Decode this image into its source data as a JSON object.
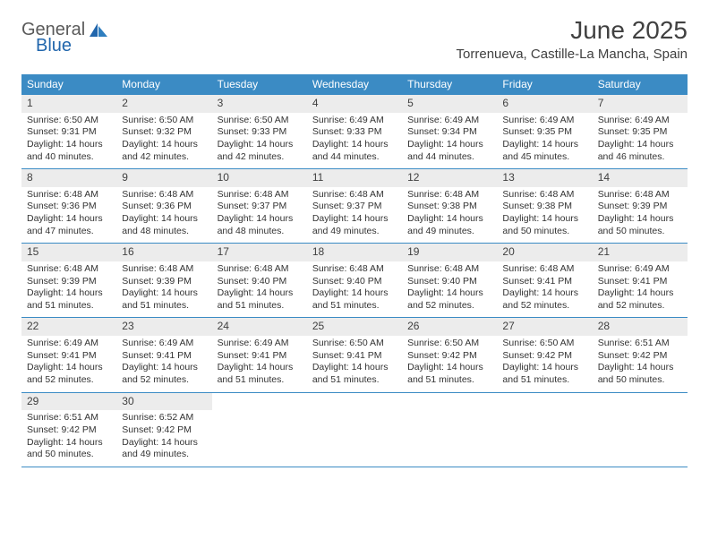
{
  "logo": {
    "text1": "General",
    "text2": "Blue"
  },
  "title": "June 2025",
  "location": "Torrenueva, Castille-La Mancha, Spain",
  "colors": {
    "header_bar": "#3b8bc4",
    "daynum_bg": "#ececec",
    "text": "#333333",
    "rule": "#3b8bc4",
    "logo_gray": "#5a5a5a",
    "logo_blue": "#2166ac"
  },
  "dow": [
    "Sunday",
    "Monday",
    "Tuesday",
    "Wednesday",
    "Thursday",
    "Friday",
    "Saturday"
  ],
  "weeks": [
    [
      {
        "n": "1",
        "sr": "Sunrise: 6:50 AM",
        "ss": "Sunset: 9:31 PM",
        "d1": "Daylight: 14 hours",
        "d2": "and 40 minutes."
      },
      {
        "n": "2",
        "sr": "Sunrise: 6:50 AM",
        "ss": "Sunset: 9:32 PM",
        "d1": "Daylight: 14 hours",
        "d2": "and 42 minutes."
      },
      {
        "n": "3",
        "sr": "Sunrise: 6:50 AM",
        "ss": "Sunset: 9:33 PM",
        "d1": "Daylight: 14 hours",
        "d2": "and 42 minutes."
      },
      {
        "n": "4",
        "sr": "Sunrise: 6:49 AM",
        "ss": "Sunset: 9:33 PM",
        "d1": "Daylight: 14 hours",
        "d2": "and 44 minutes."
      },
      {
        "n": "5",
        "sr": "Sunrise: 6:49 AM",
        "ss": "Sunset: 9:34 PM",
        "d1": "Daylight: 14 hours",
        "d2": "and 44 minutes."
      },
      {
        "n": "6",
        "sr": "Sunrise: 6:49 AM",
        "ss": "Sunset: 9:35 PM",
        "d1": "Daylight: 14 hours",
        "d2": "and 45 minutes."
      },
      {
        "n": "7",
        "sr": "Sunrise: 6:49 AM",
        "ss": "Sunset: 9:35 PM",
        "d1": "Daylight: 14 hours",
        "d2": "and 46 minutes."
      }
    ],
    [
      {
        "n": "8",
        "sr": "Sunrise: 6:48 AM",
        "ss": "Sunset: 9:36 PM",
        "d1": "Daylight: 14 hours",
        "d2": "and 47 minutes."
      },
      {
        "n": "9",
        "sr": "Sunrise: 6:48 AM",
        "ss": "Sunset: 9:36 PM",
        "d1": "Daylight: 14 hours",
        "d2": "and 48 minutes."
      },
      {
        "n": "10",
        "sr": "Sunrise: 6:48 AM",
        "ss": "Sunset: 9:37 PM",
        "d1": "Daylight: 14 hours",
        "d2": "and 48 minutes."
      },
      {
        "n": "11",
        "sr": "Sunrise: 6:48 AM",
        "ss": "Sunset: 9:37 PM",
        "d1": "Daylight: 14 hours",
        "d2": "and 49 minutes."
      },
      {
        "n": "12",
        "sr": "Sunrise: 6:48 AM",
        "ss": "Sunset: 9:38 PM",
        "d1": "Daylight: 14 hours",
        "d2": "and 49 minutes."
      },
      {
        "n": "13",
        "sr": "Sunrise: 6:48 AM",
        "ss": "Sunset: 9:38 PM",
        "d1": "Daylight: 14 hours",
        "d2": "and 50 minutes."
      },
      {
        "n": "14",
        "sr": "Sunrise: 6:48 AM",
        "ss": "Sunset: 9:39 PM",
        "d1": "Daylight: 14 hours",
        "d2": "and 50 minutes."
      }
    ],
    [
      {
        "n": "15",
        "sr": "Sunrise: 6:48 AM",
        "ss": "Sunset: 9:39 PM",
        "d1": "Daylight: 14 hours",
        "d2": "and 51 minutes."
      },
      {
        "n": "16",
        "sr": "Sunrise: 6:48 AM",
        "ss": "Sunset: 9:39 PM",
        "d1": "Daylight: 14 hours",
        "d2": "and 51 minutes."
      },
      {
        "n": "17",
        "sr": "Sunrise: 6:48 AM",
        "ss": "Sunset: 9:40 PM",
        "d1": "Daylight: 14 hours",
        "d2": "and 51 minutes."
      },
      {
        "n": "18",
        "sr": "Sunrise: 6:48 AM",
        "ss": "Sunset: 9:40 PM",
        "d1": "Daylight: 14 hours",
        "d2": "and 51 minutes."
      },
      {
        "n": "19",
        "sr": "Sunrise: 6:48 AM",
        "ss": "Sunset: 9:40 PM",
        "d1": "Daylight: 14 hours",
        "d2": "and 52 minutes."
      },
      {
        "n": "20",
        "sr": "Sunrise: 6:48 AM",
        "ss": "Sunset: 9:41 PM",
        "d1": "Daylight: 14 hours",
        "d2": "and 52 minutes."
      },
      {
        "n": "21",
        "sr": "Sunrise: 6:49 AM",
        "ss": "Sunset: 9:41 PM",
        "d1": "Daylight: 14 hours",
        "d2": "and 52 minutes."
      }
    ],
    [
      {
        "n": "22",
        "sr": "Sunrise: 6:49 AM",
        "ss": "Sunset: 9:41 PM",
        "d1": "Daylight: 14 hours",
        "d2": "and 52 minutes."
      },
      {
        "n": "23",
        "sr": "Sunrise: 6:49 AM",
        "ss": "Sunset: 9:41 PM",
        "d1": "Daylight: 14 hours",
        "d2": "and 52 minutes."
      },
      {
        "n": "24",
        "sr": "Sunrise: 6:49 AM",
        "ss": "Sunset: 9:41 PM",
        "d1": "Daylight: 14 hours",
        "d2": "and 51 minutes."
      },
      {
        "n": "25",
        "sr": "Sunrise: 6:50 AM",
        "ss": "Sunset: 9:41 PM",
        "d1": "Daylight: 14 hours",
        "d2": "and 51 minutes."
      },
      {
        "n": "26",
        "sr": "Sunrise: 6:50 AM",
        "ss": "Sunset: 9:42 PM",
        "d1": "Daylight: 14 hours",
        "d2": "and 51 minutes."
      },
      {
        "n": "27",
        "sr": "Sunrise: 6:50 AM",
        "ss": "Sunset: 9:42 PM",
        "d1": "Daylight: 14 hours",
        "d2": "and 51 minutes."
      },
      {
        "n": "28",
        "sr": "Sunrise: 6:51 AM",
        "ss": "Sunset: 9:42 PM",
        "d1": "Daylight: 14 hours",
        "d2": "and 50 minutes."
      }
    ],
    [
      {
        "n": "29",
        "sr": "Sunrise: 6:51 AM",
        "ss": "Sunset: 9:42 PM",
        "d1": "Daylight: 14 hours",
        "d2": "and 50 minutes."
      },
      {
        "n": "30",
        "sr": "Sunrise: 6:52 AM",
        "ss": "Sunset: 9:42 PM",
        "d1": "Daylight: 14 hours",
        "d2": "and 49 minutes."
      },
      null,
      null,
      null,
      null,
      null
    ]
  ]
}
